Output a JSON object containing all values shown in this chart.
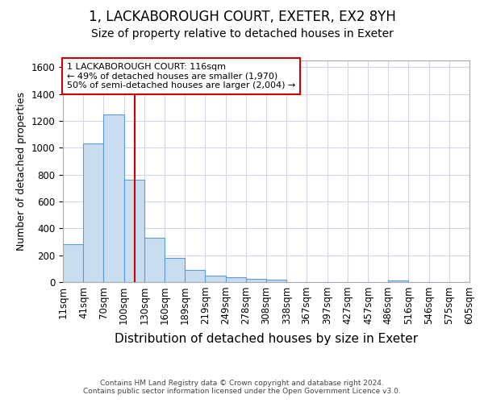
{
  "title": "1, LACKABOROUGH COURT, EXETER, EX2 8YH",
  "subtitle": "Size of property relative to detached houses in Exeter",
  "xlabel": "Distribution of detached houses by size in Exeter",
  "ylabel": "Number of detached properties",
  "bar_color": "#c8ddf0",
  "bar_edge_color": "#5b9bd5",
  "vline_x": 116,
  "vline_color": "#cc0000",
  "annotation_text": "1 LACKABOROUGH COURT: 116sqm\n← 49% of detached houses are smaller (1,970)\n50% of semi-detached houses are larger (2,004) →",
  "annotation_box_color": "#ffffff",
  "annotation_box_edge": "#cc0000",
  "footer": "Contains HM Land Registry data © Crown copyright and database right 2024.\nContains public sector information licensed under the Open Government Licence v3.0.",
  "bin_edges": [
    11,
    41,
    70,
    100,
    130,
    160,
    189,
    219,
    249,
    278,
    308,
    338,
    367,
    397,
    427,
    457,
    486,
    516,
    546,
    575,
    605
  ],
  "bar_heights": [
    280,
    1030,
    1250,
    760,
    330,
    180,
    90,
    50,
    35,
    25,
    20,
    0,
    0,
    0,
    0,
    0,
    10,
    0,
    0,
    0
  ],
  "ylim": [
    0,
    1650
  ],
  "yticks": [
    0,
    200,
    400,
    600,
    800,
    1000,
    1200,
    1400,
    1600
  ],
  "background_color": "#ffffff",
  "plot_bg_color": "#ffffff",
  "grid_color": "#d0d8e8",
  "title_fontsize": 12,
  "subtitle_fontsize": 10,
  "xlabel_fontsize": 11,
  "ylabel_fontsize": 9,
  "tick_fontsize": 8.5
}
